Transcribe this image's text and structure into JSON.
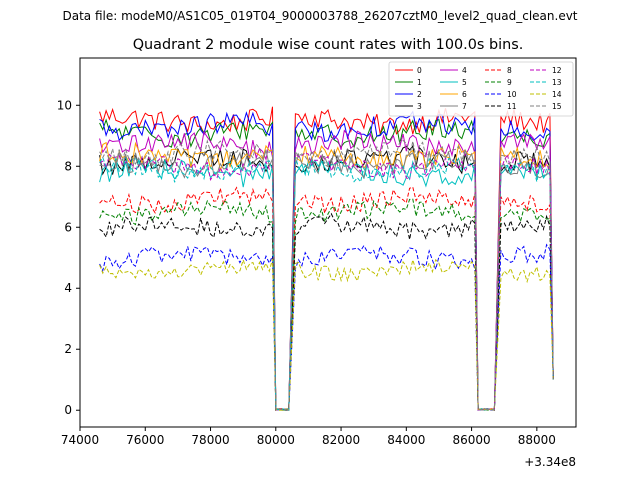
{
  "chart_data": {
    "type": "line",
    "suptitle": "Data file: modeM0/AS1C05_019T04_9000003788_26207cztM0_level2_quad_clean.evt",
    "title": "Quadrant 2 module wise count rates with 100.0s bins.",
    "xlabel": "",
    "ylabel": "",
    "x_offset_label": "+3.34e8",
    "xlim": [
      74000,
      89200
    ],
    "ylim": [
      -0.55,
      11.55
    ],
    "x_ticks": [
      74000,
      76000,
      78000,
      80000,
      82000,
      84000,
      86000,
      88000
    ],
    "y_ticks": [
      0,
      2,
      4,
      6,
      8,
      10
    ],
    "x_ticklabels": [
      "74000",
      "76000",
      "78000",
      "80000",
      "82000",
      "84000",
      "86000",
      "88000"
    ],
    "y_ticklabels": [
      "0",
      "2",
      "4",
      "6",
      "8",
      "10"
    ],
    "bin_seconds": 100,
    "time_segments": [
      [
        74600,
        79900
      ],
      [
        80600,
        86100
      ],
      [
        86900,
        88400
      ]
    ],
    "gap_segments": [
      [
        80000,
        80400
      ],
      [
        86200,
        86700
      ]
    ],
    "grid": false,
    "legend_position": "top-right",
    "series": [
      {
        "name": "0",
        "color": "#ff0000",
        "dash": "solid",
        "level": 9.5,
        "noise": 0.35
      },
      {
        "name": "1",
        "color": "#008000",
        "dash": "solid",
        "level": 9.1,
        "noise": 0.35
      },
      {
        "name": "2",
        "color": "#0000ff",
        "dash": "solid",
        "level": 9.3,
        "noise": 0.35
      },
      {
        "name": "3",
        "color": "#000000",
        "dash": "solid",
        "level": 8.2,
        "noise": 0.35
      },
      {
        "name": "4",
        "color": "#bf00bf",
        "dash": "solid",
        "level": 8.7,
        "noise": 0.35
      },
      {
        "name": "5",
        "color": "#00bfbf",
        "dash": "solid",
        "level": 7.8,
        "noise": 0.35
      },
      {
        "name": "6",
        "color": "#ffa500",
        "dash": "solid",
        "level": 8.3,
        "noise": 0.35
      },
      {
        "name": "7",
        "color": "#808080",
        "dash": "solid",
        "level": 8.1,
        "noise": 0.35
      },
      {
        "name": "8",
        "color": "#ff0000",
        "dash": "dashed",
        "level": 6.9,
        "noise": 0.3
      },
      {
        "name": "9",
        "color": "#008000",
        "dash": "dashed",
        "level": 6.5,
        "noise": 0.3
      },
      {
        "name": "10",
        "color": "#0000ff",
        "dash": "dashed",
        "level": 5.0,
        "noise": 0.3
      },
      {
        "name": "11",
        "color": "#000000",
        "dash": "dashed",
        "level": 6.0,
        "noise": 0.3
      },
      {
        "name": "12",
        "color": "#bf00bf",
        "dash": "dashed",
        "level": 8.0,
        "noise": 0.3
      },
      {
        "name": "13",
        "color": "#00bfbf",
        "dash": "dashed",
        "level": 7.9,
        "noise": 0.3
      },
      {
        "name": "14",
        "color": "#bfbf00",
        "dash": "dashed",
        "level": 4.6,
        "noise": 0.25
      },
      {
        "name": "15",
        "color": "#808080",
        "dash": "dashed",
        "level": 8.4,
        "noise": 0.3
      }
    ]
  }
}
